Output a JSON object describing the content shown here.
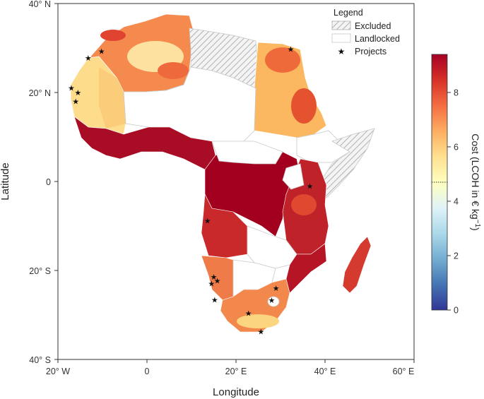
{
  "chart_data": {
    "type": "map",
    "title": "",
    "xlabel": "Longitude",
    "ylabel": "Latitude",
    "x_ticks": [
      "20° W",
      "0",
      "20° E",
      "40° E",
      "60° E"
    ],
    "y_ticks": [
      "40° N",
      "20° N",
      "0",
      "20° S",
      "40° S"
    ],
    "xlim": [
      -20,
      60
    ],
    "ylim": [
      -40,
      40
    ],
    "legend": {
      "title": "Legend",
      "entries": [
        {
          "label": "Excluded",
          "style": "hatched"
        },
        {
          "label": "Landlocked",
          "style": "white"
        },
        {
          "label": "Projects",
          "style": "star"
        }
      ]
    },
    "colorbar": {
      "title": "Cost (LCOH in € kg",
      "title_superscript": "−1",
      "title_end": ")",
      "min": 0,
      "max": 9.4,
      "ticks": [
        "0",
        "2",
        "4",
        "6",
        "8"
      ],
      "tick_values": [
        0,
        2,
        4,
        6,
        8
      ],
      "reference_line": 4.7,
      "colors": [
        "#313695",
        "#4575b4",
        "#74add1",
        "#abd9e9",
        "#e0f3f8",
        "#ffffbf",
        "#fee090",
        "#fdae61",
        "#f46d43",
        "#d73027",
        "#a50026"
      ]
    },
    "projects": [
      {
        "lon": -13.2,
        "lat": 27.8
      },
      {
        "lon": -10.2,
        "lat": 29.3
      },
      {
        "lon": 32.3,
        "lat": 29.8
      },
      {
        "lon": -17.0,
        "lat": 21.0
      },
      {
        "lon": -15.5,
        "lat": 20.0
      },
      {
        "lon": -16.0,
        "lat": 18.0
      },
      {
        "lon": 36.6,
        "lat": -1.0
      },
      {
        "lon": 13.6,
        "lat": -8.8
      },
      {
        "lon": 15.0,
        "lat": -21.4
      },
      {
        "lon": 15.8,
        "lat": -22.3
      },
      {
        "lon": 14.5,
        "lat": -22.9
      },
      {
        "lon": 15.2,
        "lat": -26.6
      },
      {
        "lon": 29.0,
        "lat": -24.0
      },
      {
        "lon": 28.0,
        "lat": -26.7
      },
      {
        "lon": 22.8,
        "lat": -29.6
      },
      {
        "lon": 25.6,
        "lat": -33.7
      }
    ]
  }
}
